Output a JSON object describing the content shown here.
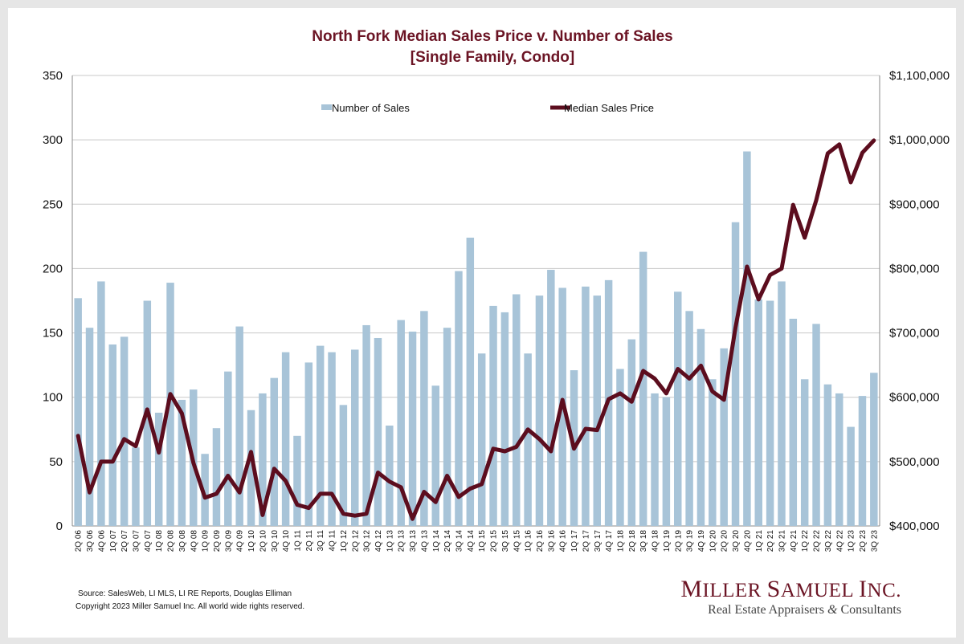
{
  "chart_data": {
    "type": "bar",
    "title_line1": "North Fork Median Sales Price v. Number of Sales",
    "title_line2": "[Single Family, Condo]",
    "categories": [
      "2Q 06",
      "3Q 06",
      "4Q 06",
      "1Q 07",
      "2Q 07",
      "3Q 07",
      "4Q 07",
      "1Q 08",
      "2Q 08",
      "3Q 08",
      "4Q 08",
      "1Q 09",
      "2Q 09",
      "3Q 09",
      "4Q 09",
      "1Q 10",
      "2Q 10",
      "3Q 10",
      "4Q 10",
      "1Q 11",
      "2Q 11",
      "3Q 11",
      "4Q 11",
      "1Q 12",
      "2Q 12",
      "3Q 12",
      "4Q 12",
      "1Q 13",
      "2Q 13",
      "3Q 13",
      "4Q 13",
      "1Q 14",
      "2Q 14",
      "3Q 14",
      "4Q 14",
      "1Q 15",
      "2Q 15",
      "3Q 15",
      "4Q 15",
      "1Q 16",
      "2Q 16",
      "3Q 16",
      "4Q 16",
      "1Q 17",
      "2Q 17",
      "3Q 17",
      "4Q 17",
      "1Q 18",
      "2Q 18",
      "3Q 18",
      "4Q 18",
      "1Q 19",
      "2Q 19",
      "3Q 19",
      "4Q 19",
      "1Q 20",
      "2Q 20",
      "3Q 20",
      "4Q 20",
      "1Q 21",
      "2Q 21",
      "3Q 21",
      "4Q 21",
      "1Q 22",
      "2Q 22",
      "3Q 22",
      "4Q 22",
      "1Q 23",
      "2Q 23",
      "3Q 23"
    ],
    "series": [
      {
        "name": "Number of Sales",
        "type": "bar",
        "axis": "left",
        "color": "#a8c4d8",
        "values": [
          177,
          154,
          190,
          141,
          147,
          61,
          175,
          88,
          189,
          98,
          106,
          56,
          76,
          120,
          155,
          90,
          103,
          115,
          135,
          70,
          127,
          140,
          135,
          94,
          137,
          156,
          146,
          78,
          160,
          151,
          167,
          109,
          154,
          198,
          224,
          134,
          171,
          166,
          180,
          134,
          179,
          199,
          185,
          121,
          186,
          179,
          191,
          122,
          145,
          213,
          103,
          100,
          182,
          167,
          153,
          114,
          138,
          236,
          291,
          176,
          175,
          190,
          161,
          114,
          157,
          110,
          103,
          77,
          101,
          119
        ]
      },
      {
        "name": "Median Sales Price",
        "type": "line",
        "axis": "right",
        "color": "#5c0d1e",
        "values": [
          540000,
          452000,
          500000,
          500000,
          535000,
          524000,
          581000,
          514000,
          605000,
          575000,
          498000,
          444000,
          450000,
          478000,
          452000,
          515000,
          417000,
          489000,
          470000,
          433000,
          428000,
          450000,
          450000,
          419000,
          416000,
          419000,
          483000,
          469000,
          460000,
          411000,
          453000,
          437000,
          478000,
          445000,
          458000,
          465000,
          520000,
          516000,
          523000,
          550000,
          535000,
          516000,
          596000,
          520000,
          551000,
          549000,
          597000,
          606000,
          593000,
          641000,
          629000,
          606000,
          644000,
          629000,
          649000,
          609000,
          596000,
          708000,
          803000,
          752000,
          790000,
          800000,
          899000,
          848000,
          906000,
          979000,
          993000,
          934000,
          980000,
          999000
        ]
      }
    ],
    "left_axis": {
      "min": 0,
      "max": 350,
      "step": 50,
      "labels": [
        "0",
        "50",
        "100",
        "150",
        "200",
        "250",
        "300",
        "350"
      ]
    },
    "right_axis": {
      "min": 400000,
      "max": 1100000,
      "step": 100000,
      "labels": [
        "$400,000",
        "$500,000",
        "$600,000",
        "$700,000",
        "$800,000",
        "$900,000",
        "$1,000,000",
        "$1,100,000"
      ]
    },
    "grid": true,
    "legend_position": "top"
  },
  "footer": {
    "source": "Source: SalesWeb, LI MLS, LI RE Reports, Douglas Elliman",
    "copyright": "Copyright 2023 Miller Samuel Inc.  All world wide rights reserved."
  },
  "logo": {
    "name_m": "M",
    "name_rest1": "ILLER ",
    "name_s": "S",
    "name_rest2": "AMUEL ",
    "name_i": "I",
    "name_rest3": "NC.",
    "tagline_a": "Real Estate Appraisers ",
    "tagline_amp": "&",
    "tagline_b": " Consultants"
  }
}
